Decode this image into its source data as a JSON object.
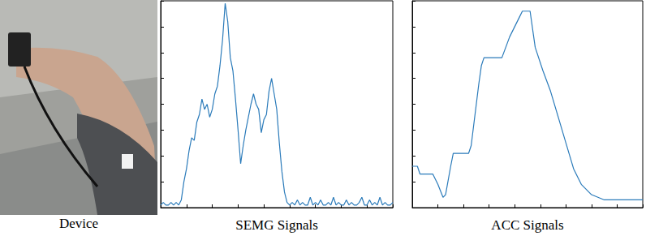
{
  "photo": {
    "caption": "Device"
  },
  "chart_data": [
    {
      "type": "line",
      "xlabel": "SEMG Signals",
      "color": "#2b7bba",
      "x": [
        0,
        1,
        2,
        3,
        4,
        5,
        6,
        7,
        8,
        9,
        10,
        11,
        12,
        13,
        14,
        15,
        16,
        17,
        18,
        19,
        20,
        21,
        22,
        23,
        24,
        25,
        26,
        27,
        28,
        29,
        30,
        31,
        32,
        33,
        34,
        35,
        36,
        37,
        38,
        39,
        40,
        41,
        42,
        43,
        44,
        45,
        46,
        47,
        48,
        49,
        50,
        51,
        52,
        53,
        54,
        55,
        56,
        57,
        58,
        59,
        60,
        61,
        62,
        63,
        64,
        65,
        66,
        67,
        68,
        69,
        70,
        71,
        72,
        73,
        74,
        75,
        76,
        77,
        78,
        79,
        80,
        81,
        82,
        83,
        84,
        85,
        86,
        87,
        88,
        89,
        90
      ],
      "values": [
        1,
        2,
        1,
        1,
        2,
        1,
        2,
        1,
        3,
        10,
        15,
        22,
        27,
        26,
        33,
        36,
        42,
        38,
        40,
        35,
        38,
        44,
        47,
        55,
        65,
        79,
        72,
        58,
        53,
        42,
        30,
        17,
        24,
        30,
        35,
        40,
        44,
        40,
        38,
        29,
        34,
        36,
        45,
        50,
        44,
        38,
        25,
        14,
        6,
        2,
        1,
        2,
        1,
        3,
        1,
        2,
        1,
        1,
        4,
        1,
        2,
        1,
        3,
        1,
        1,
        2,
        1,
        4,
        1,
        2,
        1,
        1,
        3,
        1,
        2,
        1,
        1,
        2,
        4,
        1,
        1,
        3,
        1,
        2,
        1,
        4,
        1,
        2,
        1,
        1,
        2
      ],
      "xlim": [
        0,
        90
      ],
      "xticks": [
        0,
        10,
        20,
        30,
        40,
        50,
        60,
        70,
        80,
        90
      ],
      "ylim": [
        0,
        80
      ],
      "yticks": [
        0,
        10,
        20,
        30,
        40,
        50,
        60,
        70,
        80
      ],
      "tick_labels": false,
      "grid": false
    },
    {
      "type": "line",
      "xlabel": "ACC Signals",
      "color": "#2b7bba",
      "x": [
        0,
        2,
        3,
        8,
        10,
        12,
        13,
        15,
        16,
        22,
        23,
        26,
        27,
        28,
        35,
        38,
        42,
        43,
        46,
        48,
        51,
        54,
        57,
        60,
        63,
        66,
        70,
        75,
        90
      ],
      "values": [
        16,
        16,
        13,
        13,
        9,
        4,
        5,
        16,
        21,
        21,
        24,
        48,
        55,
        58,
        58,
        66,
        74,
        76,
        76,
        62,
        53,
        45,
        35,
        25,
        15,
        9,
        5,
        3,
        3
      ],
      "xlim": [
        0,
        90
      ],
      "xticks": [
        0,
        10,
        20,
        30,
        40,
        50,
        60,
        70,
        80,
        90
      ],
      "ylim": [
        0,
        80
      ],
      "yticks": [
        0,
        10,
        20,
        30,
        40,
        50,
        60,
        70,
        80
      ],
      "tick_labels": false,
      "grid": false
    }
  ]
}
